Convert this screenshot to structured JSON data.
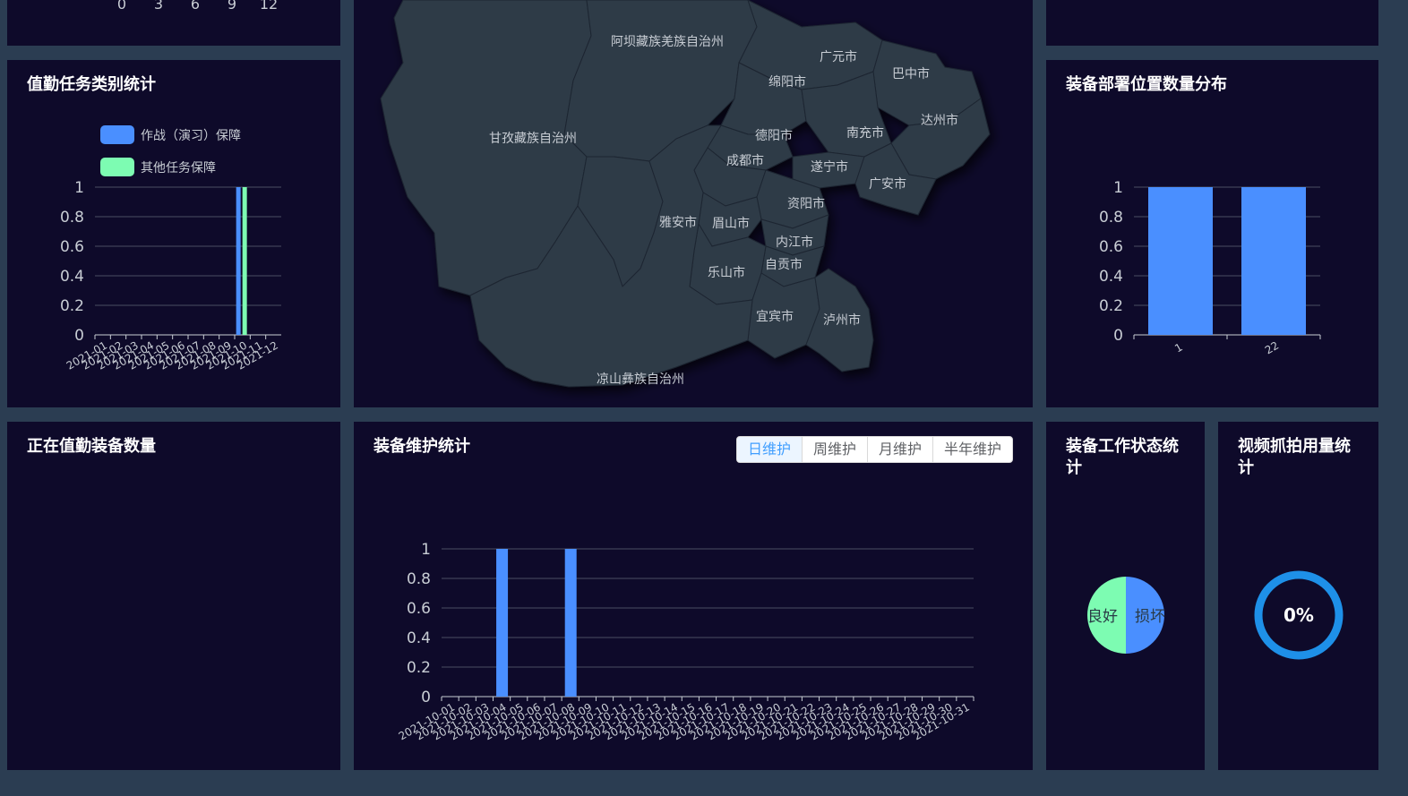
{
  "top_left_axis_ticks": [
    "0",
    "3",
    "6",
    "9",
    "12"
  ],
  "panels": {
    "duty_category": {
      "title": "值勤任务类别统计",
      "legend": [
        "作战（演习）保障",
        "其他任务保障"
      ]
    },
    "map": {
      "regions": [
        "阿坝藏族羌族自治州",
        "广元市",
        "巴中市",
        "绵阳市",
        "甘孜藏族自治州",
        "德阳市",
        "南充市",
        "达州市",
        "成都市",
        "遂宁市",
        "广安市",
        "资阳市",
        "雅安市",
        "眉山市",
        "内江市",
        "自贡市",
        "乐山市",
        "宜宾市",
        "泸州市",
        "凉山彝族自治州"
      ]
    },
    "deploy": {
      "title": "装备部署位置数量分布"
    },
    "on_duty": {
      "title": "正在值勤装备数量"
    },
    "maintenance": {
      "title": "装备维护统计",
      "tabs": [
        "日维护",
        "周维护",
        "月维护",
        "半年维护"
      ],
      "active_tab": "日维护"
    },
    "work_status": {
      "title": "装备工作状态统计",
      "labels": [
        "良好",
        "损坏"
      ]
    },
    "video": {
      "title": "视频抓拍用量统计",
      "value": "0%"
    }
  },
  "colors": {
    "blue": "#4a8fff",
    "green": "#7dfcb2",
    "ring": "#1e90e8",
    "panel": "#0e0a2a",
    "bg": "#2b3d52",
    "map": "#2f3a47"
  },
  "chart_data": [
    {
      "type": "bar",
      "title": "值勤任务类别统计",
      "categories": [
        "2021-01",
        "2021-02",
        "2021-03",
        "2021-04",
        "2021-05",
        "2021-06",
        "2021-07",
        "2021-08",
        "2021-09",
        "2021-10",
        "2021-11",
        "2021-12"
      ],
      "series": [
        {
          "name": "作战（演习）保障",
          "values": [
            0,
            0,
            0,
            0,
            0,
            0,
            0,
            0,
            0,
            1,
            0,
            0
          ]
        },
        {
          "name": "其他任务保障",
          "values": [
            0,
            0,
            0,
            0,
            0,
            0,
            0,
            0,
            0,
            1,
            0,
            0
          ]
        }
      ],
      "yticks": [
        "0",
        "0.2",
        "0.4",
        "0.6",
        "0.8",
        "1"
      ],
      "ylim": [
        0,
        1
      ]
    },
    {
      "type": "bar",
      "title": "装备部署位置数量分布",
      "categories": [
        "1",
        "22"
      ],
      "values": [
        1,
        1
      ],
      "yticks": [
        "0",
        "0.2",
        "0.4",
        "0.6",
        "0.8",
        "1"
      ],
      "ylim": [
        0,
        1
      ]
    },
    {
      "type": "bar",
      "title": "装备维护统计",
      "categories": [
        "2021-10-01",
        "2021-10-02",
        "2021-10-03",
        "2021-10-04",
        "2021-10-05",
        "2021-10-06",
        "2021-10-07",
        "2021-10-08",
        "2021-10-09",
        "2021-10-10",
        "2021-10-11",
        "2021-10-12",
        "2021-10-13",
        "2021-10-14",
        "2021-10-15",
        "2021-10-16",
        "2021-10-17",
        "2021-10-18",
        "2021-10-19",
        "2021-10-20",
        "2021-10-21",
        "2021-10-22",
        "2021-10-23",
        "2021-10-24",
        "2021-10-25",
        "2021-10-26",
        "2021-10-27",
        "2021-10-28",
        "2021-10-29",
        "2021-10-30",
        "2021-10-31"
      ],
      "values": [
        0,
        0,
        0,
        1,
        0,
        0,
        0,
        1,
        0,
        0,
        0,
        0,
        0,
        0,
        0,
        0,
        0,
        0,
        0,
        0,
        0,
        0,
        0,
        0,
        0,
        0,
        0,
        0,
        0,
        0,
        0
      ],
      "yticks": [
        "0",
        "0.2",
        "0.4",
        "0.6",
        "0.8",
        "1"
      ],
      "ylim": [
        0,
        1
      ]
    },
    {
      "type": "pie",
      "title": "装备工作状态统计",
      "labels": [
        "良好",
        "损坏"
      ],
      "values": [
        1,
        1
      ]
    }
  ]
}
